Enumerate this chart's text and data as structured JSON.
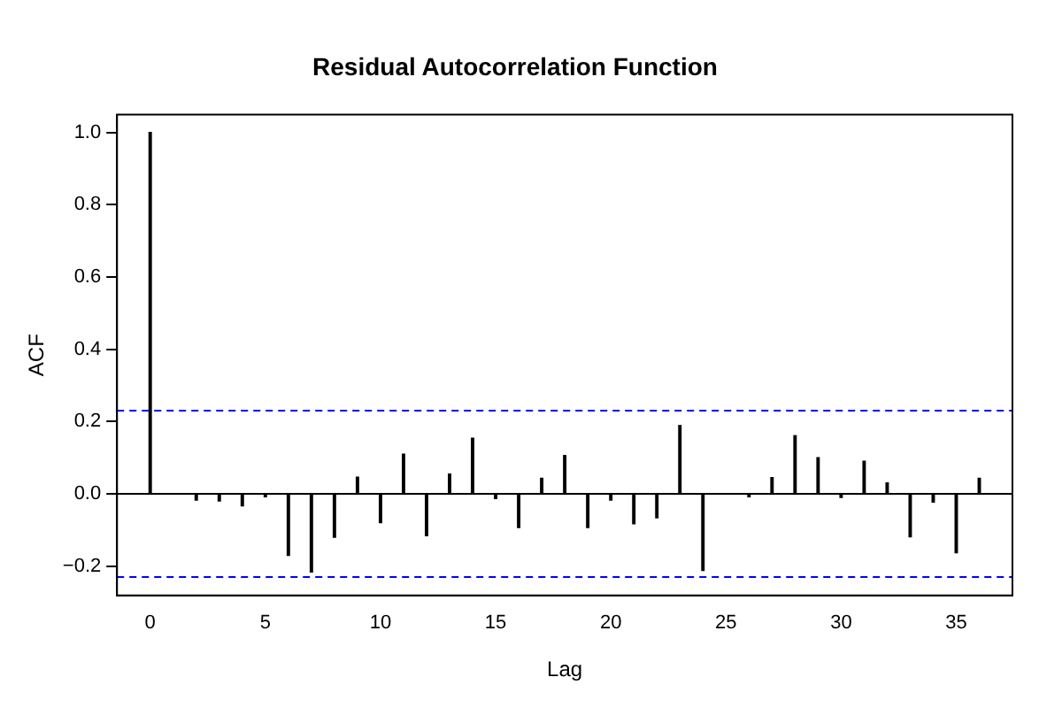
{
  "chart_data": {
    "type": "bar",
    "title": "Residual Autocorrelation Function",
    "xlabel": "Lag",
    "ylabel": "ACF",
    "x": [
      0,
      1,
      2,
      3,
      4,
      5,
      6,
      7,
      8,
      9,
      10,
      11,
      12,
      13,
      14,
      15,
      16,
      17,
      18,
      19,
      20,
      21,
      22,
      23,
      24,
      25,
      26,
      27,
      28,
      29,
      30,
      31,
      32,
      33,
      34,
      35,
      36
    ],
    "values": [
      1.0,
      null,
      -0.017,
      -0.02,
      -0.033,
      -0.008,
      -0.17,
      -0.216,
      -0.12,
      0.046,
      -0.08,
      0.11,
      -0.116,
      0.055,
      0.154,
      -0.013,
      -0.093,
      0.043,
      0.106,
      -0.093,
      -0.017,
      -0.083,
      -0.066,
      0.189,
      -0.212,
      null,
      -0.008,
      0.045,
      0.161,
      0.1,
      -0.01,
      0.09,
      0.03,
      -0.119,
      -0.023,
      -0.163,
      0.043
    ],
    "color": "#000000",
    "xlim": [
      -1.44,
      37.44
    ],
    "xticks": [
      0,
      5,
      10,
      15,
      20,
      25,
      30,
      35
    ],
    "ylim": [
      -0.281,
      1.049
    ],
    "yticks": [
      {
        "value": -0.2,
        "label": "−0.2"
      },
      {
        "value": 0,
        "label": "0.0"
      },
      {
        "value": 0.2,
        "label": "0.2"
      },
      {
        "value": 0.4,
        "label": "0.4"
      },
      {
        "value": 0.6,
        "label": "0.6"
      },
      {
        "value": 0.8,
        "label": "0.8"
      },
      {
        "value": 1.0,
        "label": "1.0"
      }
    ],
    "ref_lines": [
      {
        "axis": "y",
        "value": 0.23,
        "color": "#0000ff",
        "line_style": "dashed"
      },
      {
        "axis": "y",
        "value": -0.23,
        "color": "#0000ff",
        "line_style": "dashed"
      },
      {
        "axis": "y",
        "value": 0,
        "color": "#000000",
        "line_style": "solid"
      }
    ],
    "grid": false,
    "legend": false
  }
}
